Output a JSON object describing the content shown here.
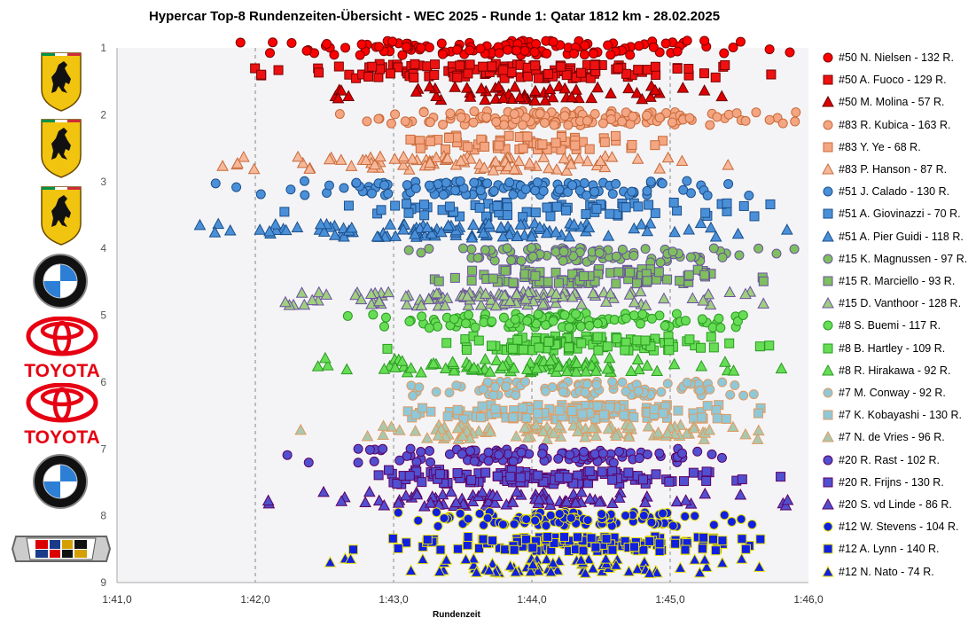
{
  "chart_data": {
    "type": "scatter",
    "title": "Hypercar Top-8 Rundenzeiten-Übersicht - WEC 2025 - Runde 1: Qatar 1812 km - 28.02.2025",
    "xlabel": "Rundenzeit",
    "ylabel": "",
    "x_tick_labels": [
      "1:41,0",
      "1:42,0",
      "1:43,0",
      "1:44,0",
      "1:45,0",
      "1:46,0"
    ],
    "x_range_seconds": [
      101.0,
      106.0
    ],
    "y_tick_labels": [
      "1",
      "2",
      "3",
      "4",
      "5",
      "6",
      "7",
      "8",
      "9"
    ],
    "ylim": [
      1,
      9
    ],
    "y_reversed": true,
    "grid": "dashed vertical",
    "legend_position": "right",
    "car_rows": [
      {
        "car": "#50",
        "manufacturer": "Ferrari",
        "row": 1,
        "color": "#e41a1c"
      },
      {
        "car": "#83",
        "manufacturer": "Ferrari",
        "row": 2,
        "color": "#f4a582"
      },
      {
        "car": "#51",
        "manufacturer": "Ferrari",
        "row": 3,
        "color": "#4a90d9"
      },
      {
        "car": "#15",
        "manufacturer": "BMW",
        "row": 4,
        "color": "#7fbf5f"
      },
      {
        "car": "#8",
        "manufacturer": "Toyota",
        "row": 5,
        "color": "#66dd55"
      },
      {
        "car": "#7",
        "manufacturer": "Toyota",
        "row": 6,
        "color": "#8fc8d8"
      },
      {
        "car": "#20",
        "manufacturer": "BMW",
        "row": 7,
        "color": "#5050d0"
      },
      {
        "car": "#12",
        "manufacturer": "Cadillac",
        "row": 8,
        "color": "#1020e0"
      }
    ],
    "series": [
      {
        "name": "#50 N. Nielsen - 132 R.",
        "car": "#50",
        "marker": "circle",
        "laps": 132,
        "offset": 0.0,
        "x_min": 101.55,
        "x_max": 105.95,
        "fill": "#ff0000",
        "stroke": "#7a0000"
      },
      {
        "name": "#50 A. Fuoco - 129 R.",
        "car": "#50",
        "marker": "square",
        "laps": 129,
        "offset": 0.35,
        "x_min": 101.9,
        "x_max": 105.85,
        "fill": "#ee1111",
        "stroke": "#7a0000"
      },
      {
        "name": "#50 M. Molina - 57 R.",
        "car": "#50",
        "marker": "triangle",
        "laps": 57,
        "offset": 0.68,
        "x_min": 102.1,
        "x_max": 105.7,
        "fill": "#dd0000",
        "stroke": "#6a0000"
      },
      {
        "name": "#83 R. Kubica - 163 R.",
        "car": "#83",
        "marker": "circle",
        "laps": 163,
        "offset": 0.05,
        "x_min": 102.6,
        "x_max": 105.95,
        "fill": "#f4a582",
        "stroke": "#c86a3a"
      },
      {
        "name": "#83 Y. Ye - 68 R.",
        "car": "#83",
        "marker": "square",
        "laps": 68,
        "offset": 0.42,
        "x_min": 102.3,
        "x_max": 105.3,
        "fill": "#f4a582",
        "stroke": "#c86a3a"
      },
      {
        "name": "#83 P. Hanson - 87 R.",
        "car": "#83",
        "marker": "triangle",
        "laps": 87,
        "offset": 0.73,
        "x_min": 101.3,
        "x_max": 105.7,
        "fill": "#f7b89a",
        "stroke": "#c86a3a"
      },
      {
        "name": "#51 J. Calado - 130 R.",
        "car": "#51",
        "marker": "circle",
        "laps": 130,
        "offset": 0.1,
        "x_min": 101.7,
        "x_max": 105.95,
        "fill": "#4a90d9",
        "stroke": "#1d4f8a"
      },
      {
        "name": "#51 A. Giovinazzi - 70 R.",
        "car": "#51",
        "marker": "square",
        "laps": 70,
        "offset": 0.42,
        "x_min": 102.2,
        "x_max": 105.95,
        "fill": "#4a90d9",
        "stroke": "#1d4f8a"
      },
      {
        "name": "#51 A. Pier Guidi - 118 R.",
        "car": "#51",
        "marker": "triangle",
        "laps": 118,
        "offset": 0.73,
        "x_min": 101.0,
        "x_max": 105.95,
        "fill": "#4a90d9",
        "stroke": "#1d4f8a"
      },
      {
        "name": "#15 K. Magnussen - 97 R.",
        "car": "#15",
        "marker": "circle",
        "laps": 97,
        "offset": 0.1,
        "x_min": 102.8,
        "x_max": 105.95,
        "fill": "#7fbf5f",
        "stroke": "#6b4fa0"
      },
      {
        "name": "#15 R. Marciello - 93 R.",
        "car": "#15",
        "marker": "square",
        "laps": 93,
        "offset": 0.42,
        "x_min": 103.0,
        "x_max": 105.95,
        "fill": "#7fbf5f",
        "stroke": "#6b4fa0"
      },
      {
        "name": "#15 D. Vanthoor - 128 R.",
        "car": "#15",
        "marker": "triangle",
        "laps": 128,
        "offset": 0.75,
        "x_min": 101.7,
        "x_max": 105.8,
        "fill": "#9fcf7f",
        "stroke": "#6b4fa0"
      },
      {
        "name": "#8 S. Buemi - 117 R.",
        "car": "#8",
        "marker": "circle",
        "laps": 117,
        "offset": 0.08,
        "x_min": 102.6,
        "x_max": 105.95,
        "fill": "#66dd55",
        "stroke": "#2a9a20"
      },
      {
        "name": "#8 B. Hartley - 109 R.",
        "car": "#8",
        "marker": "square",
        "laps": 109,
        "offset": 0.42,
        "x_min": 102.8,
        "x_max": 105.85,
        "fill": "#66dd55",
        "stroke": "#2a9a20"
      },
      {
        "name": "#8 R. Hirakawa - 92 R.",
        "car": "#8",
        "marker": "triangle",
        "laps": 92,
        "offset": 0.75,
        "x_min": 102.0,
        "x_max": 105.85,
        "fill": "#66dd55",
        "stroke": "#2a9a20"
      },
      {
        "name": "#7 M. Conway - 92 R.",
        "car": "#7",
        "marker": "circle",
        "laps": 92,
        "offset": 0.1,
        "x_min": 103.1,
        "x_max": 105.95,
        "fill": "#8fc8d8",
        "stroke": "#e09a60"
      },
      {
        "name": "#7 K. Kobayashi - 130 R.",
        "car": "#7",
        "marker": "square",
        "laps": 130,
        "offset": 0.45,
        "x_min": 102.8,
        "x_max": 105.95,
        "fill": "#8fc8d8",
        "stroke": "#e09a60"
      },
      {
        "name": "#7 N. de Vries - 96 R.",
        "car": "#7",
        "marker": "triangle",
        "laps": 96,
        "offset": 0.75,
        "x_min": 102.2,
        "x_max": 105.95,
        "fill": "#a8c8b0",
        "stroke": "#e09a60"
      },
      {
        "name": "#20 R. Rast - 102 R.",
        "car": "#20",
        "marker": "circle",
        "laps": 102,
        "offset": 0.1,
        "x_min": 102.1,
        "x_max": 105.95,
        "fill": "#5050d0",
        "stroke": "#600060"
      },
      {
        "name": "#20 R. Frijns - 130 R.",
        "car": "#20",
        "marker": "square",
        "laps": 130,
        "offset": 0.42,
        "x_min": 102.2,
        "x_max": 105.95,
        "fill": "#5050d0",
        "stroke": "#600060"
      },
      {
        "name": "#20 S. vd Linde - 86 R.",
        "car": "#20",
        "marker": "triangle",
        "laps": 86,
        "offset": 0.75,
        "x_min": 102.0,
        "x_max": 105.95,
        "fill": "#5050d0",
        "stroke": "#600060"
      },
      {
        "name": "#12 W. Stevens - 104 R.",
        "car": "#12",
        "marker": "circle",
        "laps": 104,
        "offset": 0.05,
        "x_min": 102.65,
        "x_max": 105.95,
        "fill": "#1020e0",
        "stroke": "#e8e000"
      },
      {
        "name": "#12 A. Lynn - 140 R.",
        "car": "#12",
        "marker": "square",
        "laps": 140,
        "offset": 0.42,
        "x_min": 102.7,
        "x_max": 105.95,
        "fill": "#1020e0",
        "stroke": "#e8e000"
      },
      {
        "name": "#12 N. Nato - 74 R.",
        "car": "#12",
        "marker": "triangle",
        "laps": 74,
        "offset": 0.75,
        "x_min": 102.5,
        "x_max": 105.85,
        "fill": "#1020e0",
        "stroke": "#e8e000"
      }
    ],
    "logos": [
      {
        "row": 1,
        "brand": "Ferrari",
        "icon": "ferrari-shield-icon"
      },
      {
        "row": 2,
        "brand": "Ferrari",
        "icon": "ferrari-shield-icon"
      },
      {
        "row": 3,
        "brand": "Ferrari",
        "icon": "ferrari-shield-icon"
      },
      {
        "row": 4,
        "brand": "BMW",
        "icon": "bmw-roundel-icon"
      },
      {
        "row": 5,
        "brand": "TOYOTA",
        "icon": "toyota-emblem-icon"
      },
      {
        "row": 6,
        "brand": "TOYOTA",
        "icon": "toyota-emblem-icon"
      },
      {
        "row": 7,
        "brand": "BMW",
        "icon": "bmw-roundel-icon"
      },
      {
        "row": 8,
        "brand": "Cadillac",
        "icon": "cadillac-crest-icon"
      }
    ]
  }
}
